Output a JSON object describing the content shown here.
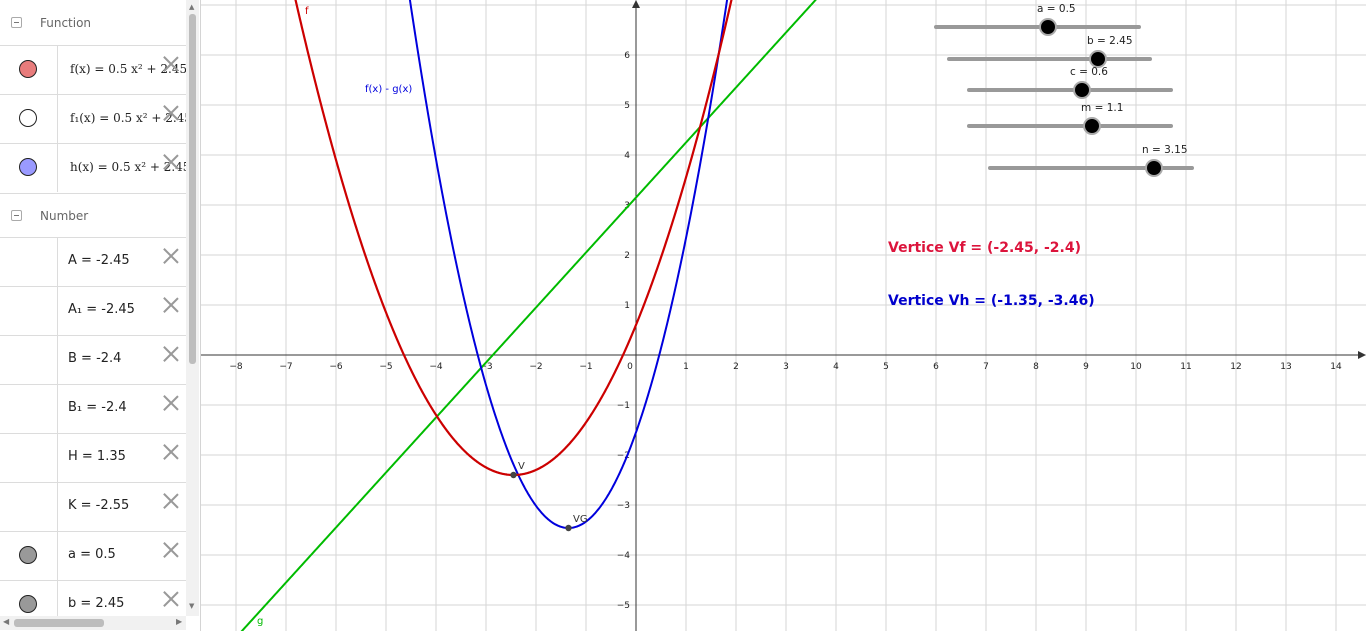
{
  "algebra": {
    "groups": {
      "function": "Function",
      "number": "Number"
    },
    "functions": [
      {
        "expr": "f(x)  =  0.5 x² + 2.45",
        "color": "#e87c7c",
        "filled": true
      },
      {
        "expr": "f₁(x)  =  0.5 x² + 2.45",
        "color": "#ffffff",
        "filled": false
      },
      {
        "expr": "h(x)  =  0.5 x² + 2.45",
        "color": "#9a9aff",
        "filled": true
      }
    ],
    "numbers": [
      {
        "expr": "A = -2.45",
        "dot": false
      },
      {
        "expr": "A₁ = -2.45",
        "dot": false
      },
      {
        "expr": "B = -2.4",
        "dot": false
      },
      {
        "expr": "B₁ = -2.4",
        "dot": false
      },
      {
        "expr": "H = 1.35",
        "dot": false
      },
      {
        "expr": "K = -2.55",
        "dot": false
      },
      {
        "expr": "a = 0.5",
        "dot": true
      },
      {
        "expr": "b = 2.45",
        "dot": true
      }
    ],
    "scroll_arrows": {
      "up": "▲",
      "down": "▼",
      "left": "◀",
      "right": "▶"
    }
  },
  "graph": {
    "x_ticks": [
      "−8",
      "−7",
      "−6",
      "−5",
      "−4",
      "−3",
      "−2",
      "−1",
      "0",
      "1",
      "2",
      "3",
      "4",
      "5",
      "6",
      "7",
      "8",
      "9",
      "10",
      "11",
      "12",
      "13",
      "14"
    ],
    "y_ticks_pos": [
      "1",
      "2",
      "3",
      "4",
      "5",
      "6"
    ],
    "y_ticks_neg": [
      "−1",
      "−2",
      "−3",
      "−4",
      "−5"
    ],
    "labels": {
      "f": "f",
      "g": "g",
      "diff": "f(x) - g(x)",
      "V": "V",
      "VG": "VG"
    },
    "sliders": {
      "a": "a = 0.5",
      "b": "b = 2.45",
      "c": "c = 0.6",
      "m": "m = 1.1",
      "n": "n = 3.15"
    },
    "vertex_f": "Vertice Vf = (-2.45, -2.4)",
    "vertex_h": "Vertice Vh = (-1.35, -3.46)",
    "colors": {
      "f": "#cc0000",
      "h": "#0000dd",
      "g": "#00bb00",
      "vf_text": "#dc143c",
      "vh_text": "#0000cc",
      "grid": "#d6d6d6",
      "axis": "#333333"
    }
  }
}
